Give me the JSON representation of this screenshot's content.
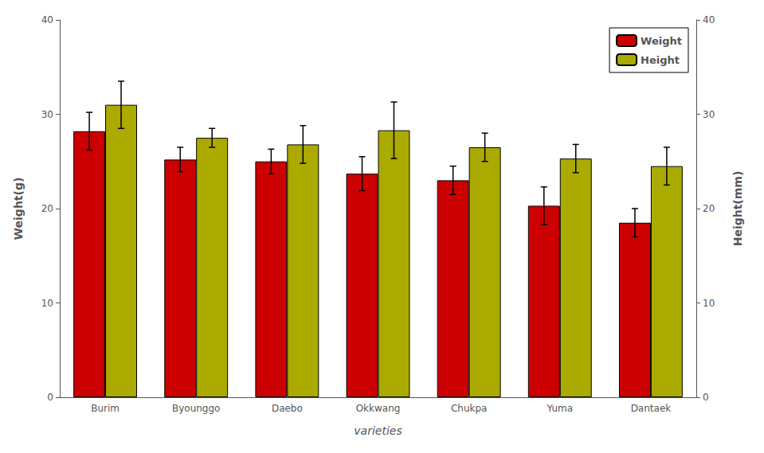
{
  "chart_data": {
    "type": "bar",
    "categories": [
      "Burim",
      "Byounggo",
      "Daebo",
      "Okkwang",
      "Chukpa",
      "Yuma",
      "Dantaek"
    ],
    "series": [
      {
        "name": "Weight",
        "color": "#CC0000",
        "values": [
          28.2,
          25.2,
          25.0,
          23.7,
          23.0,
          20.3,
          18.5
        ],
        "errors": [
          2.0,
          1.3,
          1.3,
          1.8,
          1.5,
          2.0,
          1.5
        ]
      },
      {
        "name": "Height",
        "color": "#AAAA00",
        "axis": "y2",
        "values": [
          31.0,
          27.5,
          26.8,
          28.3,
          26.5,
          25.3,
          24.5
        ],
        "errors": [
          2.5,
          1.0,
          2.0,
          3.0,
          1.5,
          1.5,
          2.0
        ]
      }
    ],
    "xlabel": "varieties",
    "ylabel": "Weight(g)",
    "y2label": "Height(mm)",
    "ylim": [
      0,
      40
    ],
    "yticks": [
      0,
      10,
      20,
      30,
      40
    ],
    "y2lim": [
      0,
      40
    ],
    "y2ticks": [
      0,
      10,
      20,
      30,
      40
    ],
    "legend": "upper right",
    "grid": false
  }
}
